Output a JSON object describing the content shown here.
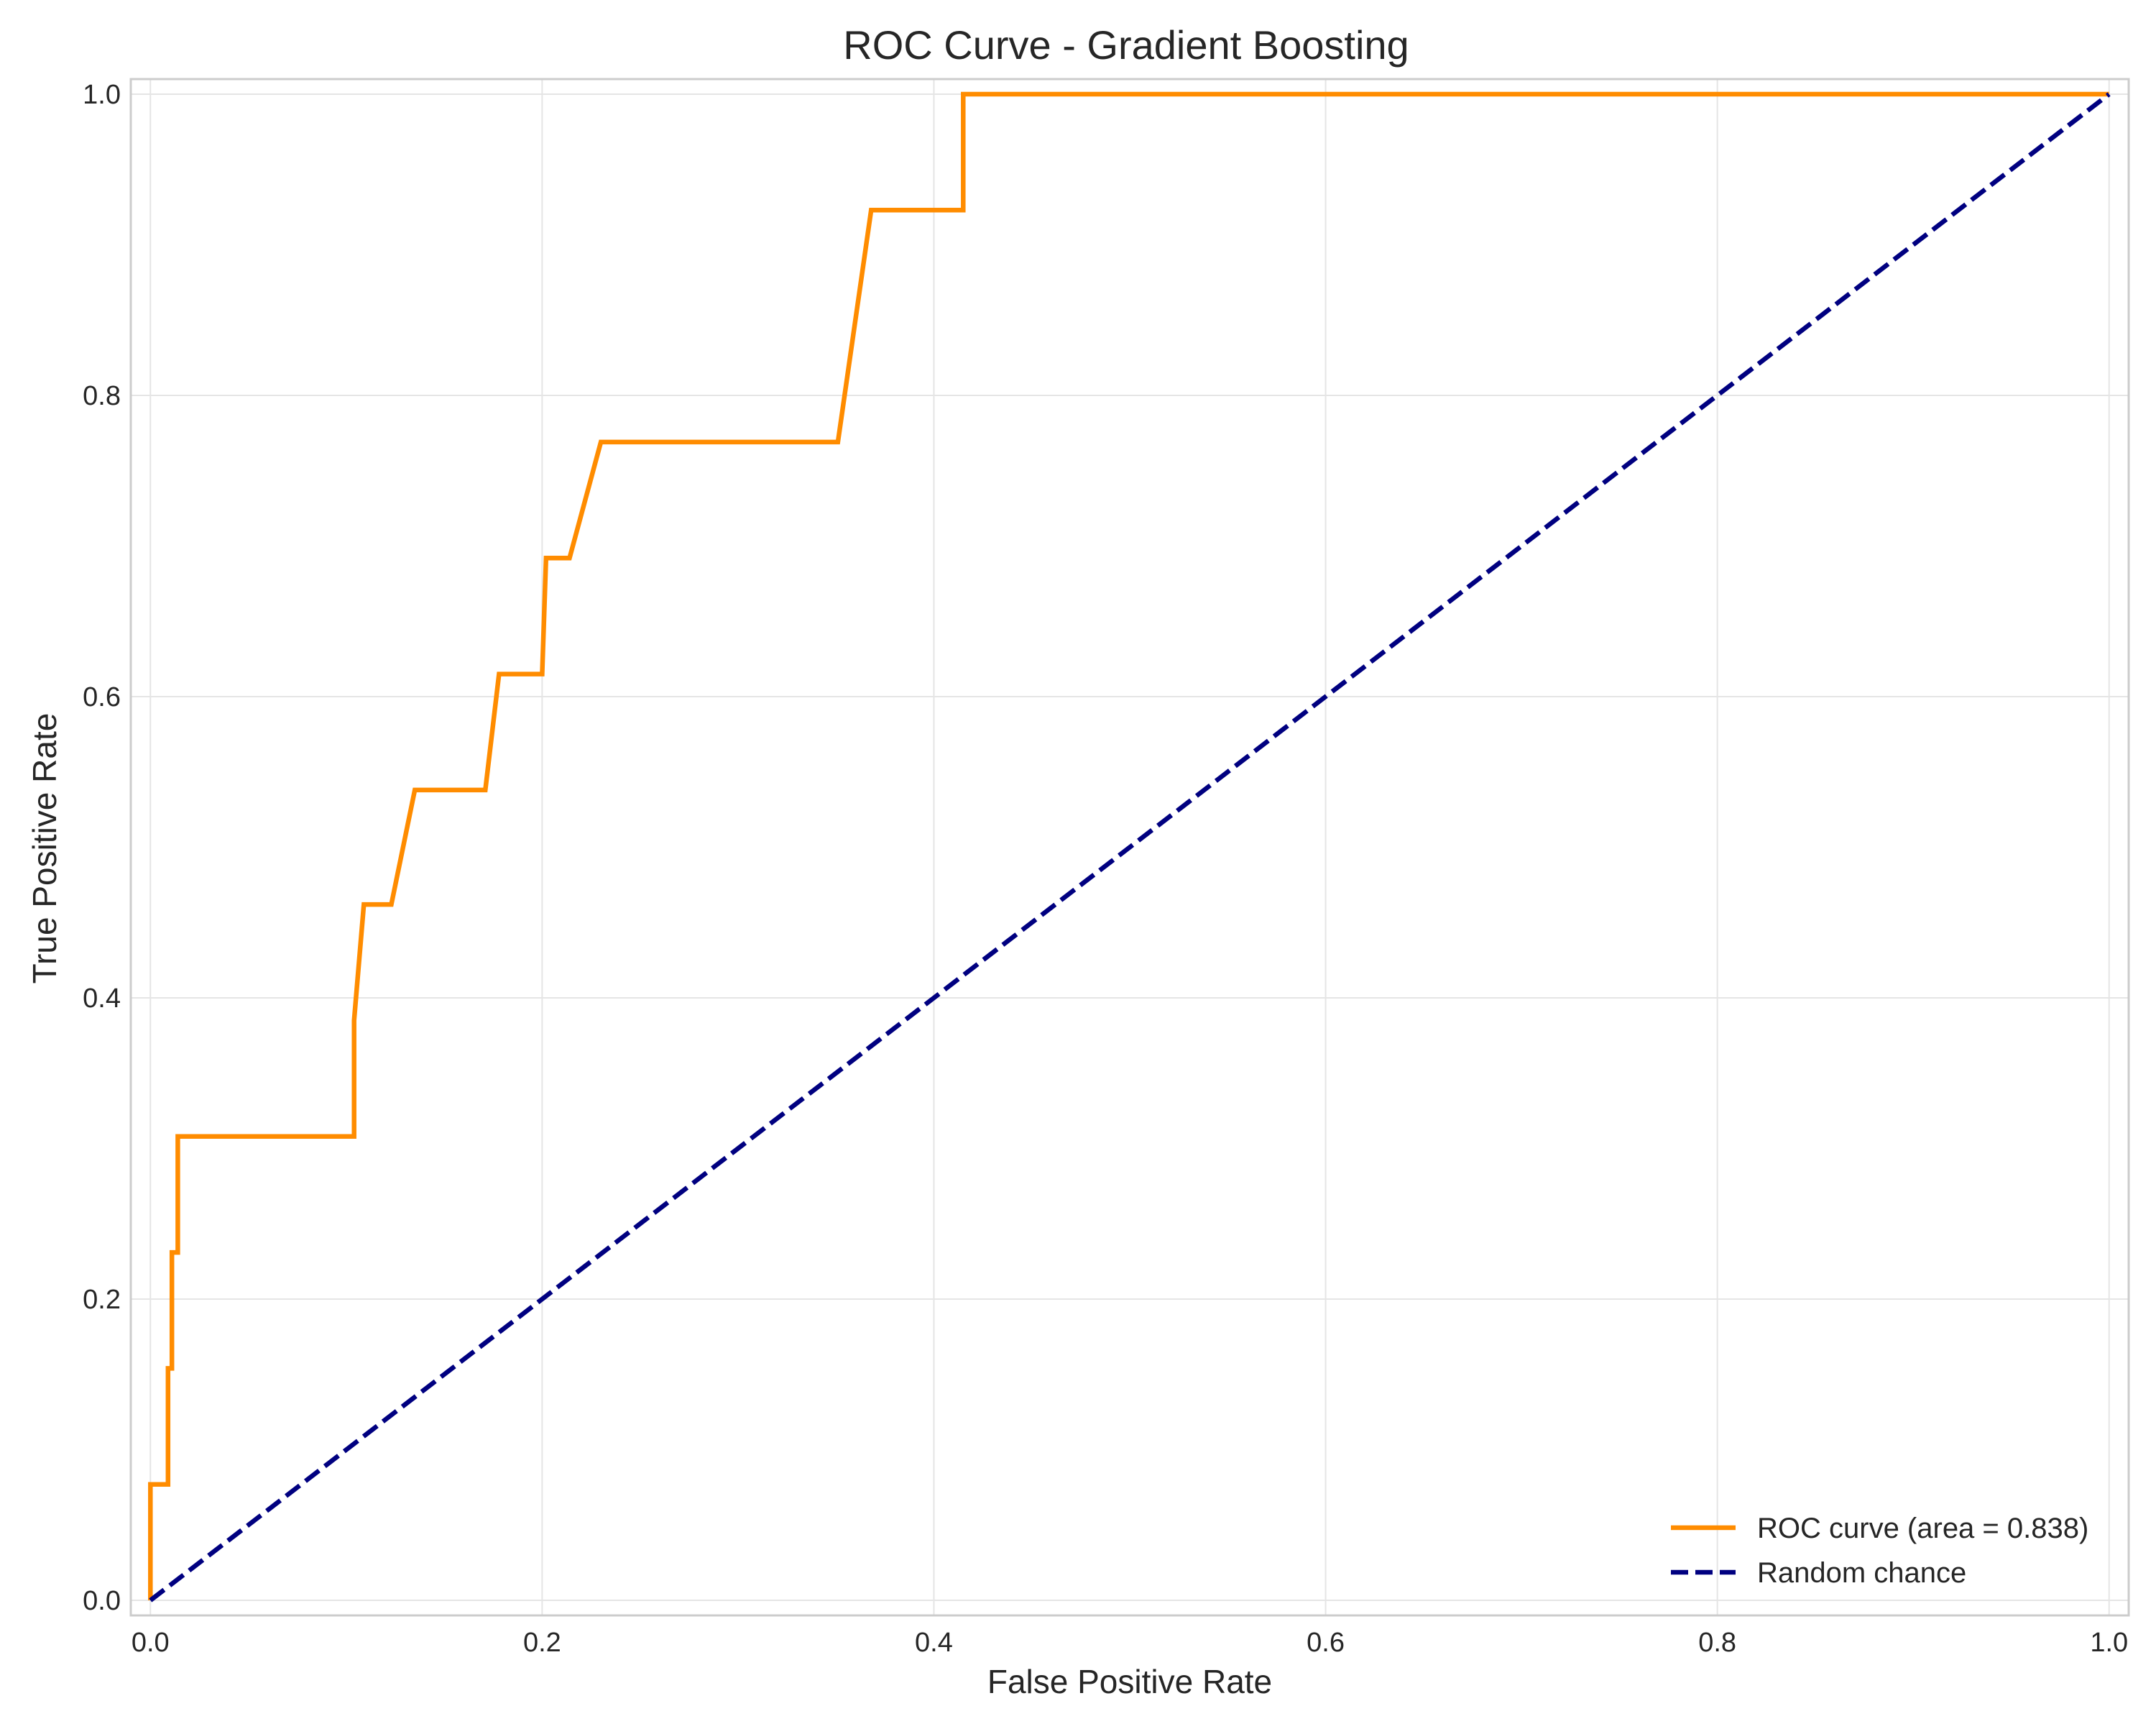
{
  "chart_data": {
    "type": "line",
    "title": "ROC Curve - Gradient Boosting",
    "xlabel": "False Positive Rate",
    "ylabel": "True Positive Rate",
    "xlim": [
      -0.01,
      1.01
    ],
    "ylim": [
      -0.01,
      1.01
    ],
    "xticks": [
      "0.0",
      "0.2",
      "0.4",
      "0.6",
      "0.8",
      "1.0"
    ],
    "yticks": [
      "0.0",
      "0.2",
      "0.4",
      "0.6",
      "0.8",
      "1.0"
    ],
    "grid": true,
    "legend_position": "lower-right",
    "series": [
      {
        "name": "ROC curve (area = 0.838)",
        "color": "#ff8c00",
        "dash": "solid",
        "x": [
          0.0,
          0.0,
          0.009,
          0.009,
          0.011,
          0.011,
          0.014,
          0.014,
          0.104,
          0.104,
          0.109,
          0.123,
          0.135,
          0.171,
          0.178,
          0.2,
          0.202,
          0.214,
          0.23,
          0.351,
          0.368,
          0.415,
          0.415,
          1.0
        ],
        "y": [
          0.0,
          0.077,
          0.077,
          0.154,
          0.154,
          0.231,
          0.231,
          0.308,
          0.308,
          0.385,
          0.462,
          0.462,
          0.538,
          0.538,
          0.615,
          0.615,
          0.692,
          0.692,
          0.769,
          0.769,
          0.923,
          0.923,
          1.0,
          1.0
        ]
      },
      {
        "name": "Random chance",
        "color": "#000080",
        "dash": "dashed",
        "x": [
          0.0,
          1.0
        ],
        "y": [
          0.0,
          1.0
        ]
      }
    ]
  }
}
